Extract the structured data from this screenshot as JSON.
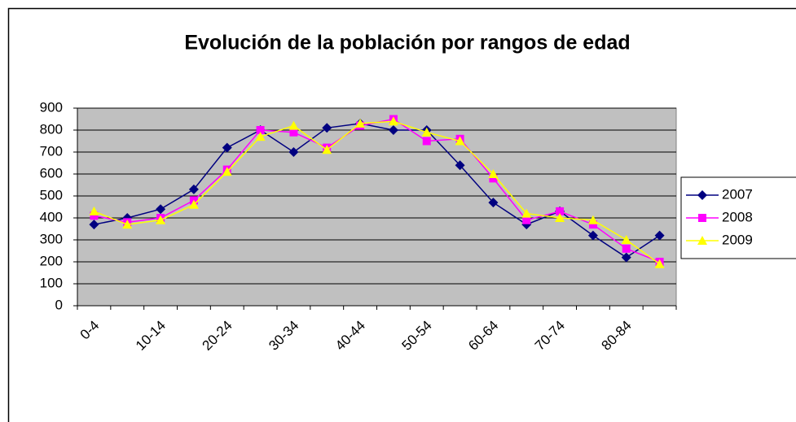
{
  "chart_data": {
    "type": "line",
    "title": "Evolución de la población por rangos de edad",
    "categories": [
      "0-4",
      null,
      "10-14",
      null,
      "20-24",
      null,
      "30-34",
      null,
      "40-44",
      null,
      "50-54",
      null,
      "60-64",
      null,
      "70-74",
      null,
      "80-84",
      null
    ],
    "series": [
      {
        "name": "2007",
        "color": "#000080",
        "marker": "diamond",
        "values": [
          370,
          400,
          440,
          530,
          720,
          800,
          700,
          810,
          830,
          800,
          800,
          640,
          470,
          370,
          430,
          320,
          220,
          320
        ]
      },
      {
        "name": "2008",
        "color": "#ff00ff",
        "marker": "square",
        "values": [
          410,
          380,
          400,
          480,
          620,
          800,
          790,
          720,
          820,
          850,
          750,
          760,
          580,
          390,
          430,
          370,
          260,
          200
        ]
      },
      {
        "name": "2009",
        "color": "#ffff00",
        "marker": "triangle",
        "values": [
          430,
          370,
          390,
          460,
          610,
          770,
          820,
          710,
          830,
          840,
          790,
          750,
          600,
          420,
          400,
          390,
          300,
          190
        ]
      }
    ],
    "ylim": [
      0,
      900
    ],
    "yticks": [
      0,
      100,
      200,
      300,
      400,
      500,
      600,
      700,
      800,
      900
    ],
    "grid": true,
    "legend": "right"
  }
}
